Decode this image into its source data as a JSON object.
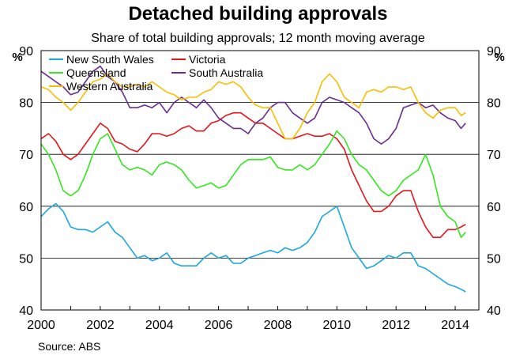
{
  "title": "Detached building approvals",
  "subtitle": "Share of total building approvals; 12 month moving average",
  "source": "Source: ABS",
  "chart_data": {
    "type": "line",
    "title": "Detached building approvals",
    "subtitle": "Share of total building approvals; 12 month moving average",
    "ylabel_left": "%",
    "ylabel_right": "%",
    "xlim": [
      2000,
      2014.8
    ],
    "ylim": [
      40,
      90
    ],
    "xticks": [
      2000,
      2002,
      2004,
      2006,
      2008,
      2010,
      2012,
      2014
    ],
    "yticks": [
      40,
      50,
      60,
      70,
      80,
      90
    ],
    "gridlines": "horizontal",
    "legend_position": "top-left",
    "series": [
      {
        "name": "New South Wales",
        "color": "#1BA7E0",
        "x": [
          2000.0,
          2000.25,
          2000.5,
          2000.75,
          2001.0,
          2001.25,
          2001.5,
          2001.75,
          2002.0,
          2002.25,
          2002.5,
          2002.75,
          2003.0,
          2003.25,
          2003.5,
          2003.75,
          2004.0,
          2004.25,
          2004.5,
          2004.75,
          2005.0,
          2005.25,
          2005.5,
          2005.75,
          2006.0,
          2006.25,
          2006.5,
          2006.75,
          2007.0,
          2007.25,
          2007.5,
          2007.75,
          2008.0,
          2008.25,
          2008.5,
          2008.75,
          2009.0,
          2009.25,
          2009.5,
          2009.75,
          2010.0,
          2010.25,
          2010.5,
          2010.75,
          2011.0,
          2011.25,
          2011.5,
          2011.75,
          2012.0,
          2012.25,
          2012.5,
          2012.75,
          2013.0,
          2013.25,
          2013.5,
          2013.75,
          2014.0,
          2014.2,
          2014.35
        ],
        "values": [
          58,
          59.5,
          60.5,
          59,
          56,
          55.5,
          55.5,
          55,
          56,
          57,
          55,
          54,
          52,
          50,
          50.5,
          49.5,
          50,
          51,
          49,
          48.5,
          48.5,
          48.5,
          50,
          51,
          50,
          50.5,
          49,
          49,
          50,
          50.5,
          51,
          51.5,
          51,
          52,
          51.5,
          52,
          53,
          55,
          58,
          59,
          60,
          56,
          52,
          50,
          48,
          48.5,
          49.5,
          50.5,
          50,
          51,
          51,
          48.5,
          48,
          47,
          46,
          45,
          44.5,
          44,
          43.5
        ]
      },
      {
        "name": "Victoria",
        "color": "#E8141B",
        "x": [
          2000.0,
          2000.25,
          2000.5,
          2000.75,
          2001.0,
          2001.25,
          2001.5,
          2001.75,
          2002.0,
          2002.25,
          2002.5,
          2002.75,
          2003.0,
          2003.25,
          2003.5,
          2003.75,
          2004.0,
          2004.25,
          2004.5,
          2004.75,
          2005.0,
          2005.25,
          2005.5,
          2005.75,
          2006.0,
          2006.25,
          2006.5,
          2006.75,
          2007.0,
          2007.25,
          2007.5,
          2007.75,
          2008.0,
          2008.25,
          2008.5,
          2008.75,
          2009.0,
          2009.25,
          2009.5,
          2009.75,
          2010.0,
          2010.25,
          2010.5,
          2010.75,
          2011.0,
          2011.25,
          2011.5,
          2011.75,
          2012.0,
          2012.25,
          2012.5,
          2012.75,
          2013.0,
          2013.25,
          2013.5,
          2013.75,
          2014.0,
          2014.2,
          2014.35
        ],
        "values": [
          73,
          74,
          72.5,
          70,
          69,
          70,
          72,
          74,
          76,
          75,
          72.5,
          72,
          71,
          70.5,
          72,
          74,
          74,
          73.5,
          74,
          75,
          75.5,
          74.5,
          74.5,
          76,
          76.5,
          77.5,
          78,
          78,
          77,
          76,
          76,
          75,
          74,
          73,
          73,
          73.5,
          74,
          73.5,
          73.5,
          74,
          73,
          71,
          67,
          64,
          61,
          59,
          59,
          60,
          62,
          63,
          63,
          59,
          56,
          54,
          54,
          55.5,
          55.5,
          56,
          56.5
        ]
      },
      {
        "name": "Queensland",
        "color": "#33E81F",
        "x": [
          2000.0,
          2000.25,
          2000.5,
          2000.75,
          2001.0,
          2001.25,
          2001.5,
          2001.75,
          2002.0,
          2002.25,
          2002.5,
          2002.75,
          2003.0,
          2003.25,
          2003.5,
          2003.75,
          2004.0,
          2004.25,
          2004.5,
          2004.75,
          2005.0,
          2005.25,
          2005.5,
          2005.75,
          2006.0,
          2006.25,
          2006.5,
          2006.75,
          2007.0,
          2007.25,
          2007.5,
          2007.75,
          2008.0,
          2008.25,
          2008.5,
          2008.75,
          2009.0,
          2009.25,
          2009.5,
          2009.75,
          2010.0,
          2010.25,
          2010.5,
          2010.75,
          2011.0,
          2011.25,
          2011.5,
          2011.75,
          2012.0,
          2012.25,
          2012.5,
          2012.75,
          2013.0,
          2013.25,
          2013.5,
          2013.75,
          2014.0,
          2014.2,
          2014.35
        ],
        "values": [
          72,
          70,
          67,
          63,
          62,
          63,
          66,
          70,
          73,
          74,
          71,
          68,
          67,
          67.5,
          67,
          66,
          68,
          68.5,
          68,
          67,
          65,
          63.5,
          64,
          64.5,
          63.5,
          64,
          66,
          68,
          69,
          69,
          69,
          69.5,
          67.5,
          67,
          67,
          68,
          67,
          68,
          70,
          72,
          74.5,
          73,
          70,
          68,
          67,
          65,
          63,
          62,
          63,
          65,
          66,
          67,
          70,
          66,
          60,
          58,
          57,
          54,
          55
        ]
      },
      {
        "name": "South Australia",
        "color": "#6A2C91",
        "x": [
          2000.0,
          2000.25,
          2000.5,
          2000.75,
          2001.0,
          2001.25,
          2001.5,
          2001.75,
          2002.0,
          2002.25,
          2002.5,
          2002.75,
          2003.0,
          2003.25,
          2003.5,
          2003.75,
          2004.0,
          2004.25,
          2004.5,
          2004.75,
          2005.0,
          2005.25,
          2005.5,
          2005.75,
          2006.0,
          2006.25,
          2006.5,
          2006.75,
          2007.0,
          2007.25,
          2007.5,
          2007.75,
          2008.0,
          2008.25,
          2008.5,
          2008.75,
          2009.0,
          2009.25,
          2009.5,
          2009.75,
          2010.0,
          2010.25,
          2010.5,
          2010.75,
          2011.0,
          2011.25,
          2011.5,
          2011.75,
          2012.0,
          2012.25,
          2012.5,
          2012.75,
          2013.0,
          2013.25,
          2013.5,
          2013.75,
          2014.0,
          2014.2,
          2014.35
        ],
        "values": [
          86,
          85,
          84,
          83,
          81.5,
          82,
          84,
          86,
          87,
          85,
          84,
          82,
          79,
          79,
          79.5,
          79,
          80,
          78,
          80,
          81,
          80,
          79,
          80.5,
          79,
          77,
          76,
          75,
          75,
          74,
          76,
          77,
          79,
          80,
          80,
          78,
          77,
          76,
          77,
          80,
          81,
          80.5,
          80,
          79,
          78,
          76,
          73,
          72,
          73,
          75,
          79,
          79.5,
          80,
          79,
          79.5,
          78,
          77,
          76.5,
          75,
          76
        ]
      },
      {
        "name": "Western Australia",
        "color": "#F9BE00",
        "x": [
          2000.0,
          2000.25,
          2000.5,
          2000.75,
          2001.0,
          2001.25,
          2001.5,
          2001.75,
          2002.0,
          2002.25,
          2002.5,
          2002.75,
          2003.0,
          2003.25,
          2003.5,
          2003.75,
          2004.0,
          2004.25,
          2004.5,
          2004.75,
          2005.0,
          2005.25,
          2005.5,
          2005.75,
          2006.0,
          2006.25,
          2006.5,
          2006.75,
          2007.0,
          2007.25,
          2007.5,
          2007.75,
          2008.0,
          2008.25,
          2008.5,
          2008.75,
          2009.0,
          2009.25,
          2009.5,
          2009.75,
          2010.0,
          2010.25,
          2010.5,
          2010.75,
          2011.0,
          2011.25,
          2011.5,
          2011.75,
          2012.0,
          2012.25,
          2012.5,
          2012.75,
          2013.0,
          2013.25,
          2013.5,
          2013.75,
          2014.0,
          2014.2,
          2014.35
        ],
        "values": [
          83,
          82.5,
          81,
          80,
          78.5,
          80,
          82,
          84,
          84.5,
          85.5,
          84,
          83,
          83,
          83.5,
          83,
          84,
          83,
          82,
          81.5,
          80.5,
          81,
          81,
          82,
          82.5,
          84,
          83.5,
          84,
          83,
          81,
          79.5,
          79,
          79,
          76,
          73,
          73,
          75,
          78,
          80,
          84,
          85.5,
          84,
          81,
          80,
          79,
          82,
          82.5,
          82,
          83,
          83,
          82.5,
          83,
          80,
          78,
          77,
          78.5,
          79,
          79,
          77.5,
          78
        ]
      }
    ]
  }
}
